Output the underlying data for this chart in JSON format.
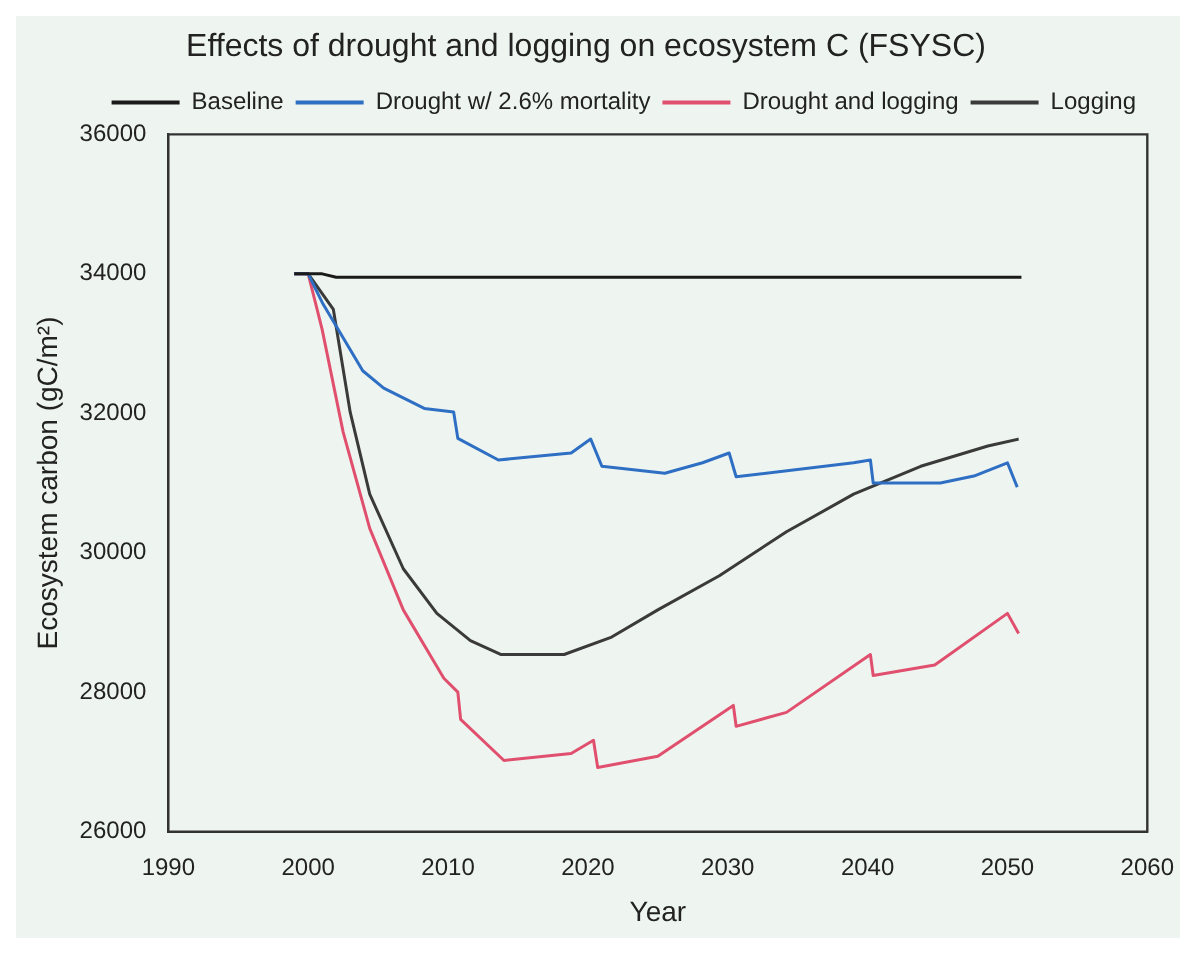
{
  "chart_data": {
    "type": "line",
    "title": "Effects of drought and logging on ecosystem C (FSYSC)",
    "xlabel": "Year",
    "ylabel": "Ecosystem carbon (gC/m²)",
    "xlim": [
      1990,
      2060
    ],
    "xticks": [
      1990,
      2000,
      2010,
      2020,
      2030,
      2040,
      2050,
      2060
    ],
    "ylim": [
      26000,
      36000
    ],
    "yticks": [
      26000,
      28000,
      30000,
      32000,
      34000,
      36000
    ],
    "grid": false,
    "legend": "top right",
    "line_style": "solid",
    "marker": "none",
    "series": [
      {
        "name": "Baseline",
        "color": "#1a1a1a",
        "x": [
          1999,
          2001,
          2002,
          2051
        ],
        "values": [
          34000,
          34000,
          33950,
          33950
        ]
      },
      {
        "name": "Drought w/ 2.6% mortality",
        "color": "#2e6fc4",
        "x": [
          1999,
          2000,
          2001,
          2003.9,
          2005.4,
          2008.3,
          2010.4,
          2010.7,
          2013.6,
          2018.8,
          2020.2,
          2021,
          2025.5,
          2028.2,
          2030.1,
          2030.6,
          2039,
          2040.2,
          2040.4,
          2045.2,
          2047.6,
          2050,
          2050.7
        ],
        "values": [
          34000,
          34000,
          33590,
          32610,
          32360,
          32070,
          32020,
          31640,
          31330,
          31430,
          31630,
          31240,
          31140,
          31290,
          31430,
          31090,
          31290,
          31330,
          31000,
          31000,
          31100,
          31290,
          30940
        ]
      },
      {
        "name": "Drought and logging",
        "color": "#e0506e",
        "x": [
          1999,
          2000,
          2001,
          2002.5,
          2004.4,
          2006.8,
          2009.7,
          2010.7,
          2010.9,
          2014,
          2018.8,
          2020.4,
          2020.7,
          2025,
          2030.4,
          2030.6,
          2034.2,
          2040.2,
          2040.4,
          2044.8,
          2050,
          2050.8
        ],
        "values": [
          34000,
          34000,
          33200,
          31730,
          30350,
          29180,
          28200,
          28000,
          27610,
          27020,
          27120,
          27310,
          26920,
          27080,
          27810,
          27510,
          27710,
          28540,
          28240,
          28390,
          29130,
          28840
        ]
      },
      {
        "name": "Logging",
        "color": "#3a3a3a",
        "x": [
          1999,
          2000,
          2001.8,
          2003,
          2004.4,
          2006.8,
          2009.2,
          2011.6,
          2013.8,
          2018.3,
          2021.7,
          2025,
          2029.4,
          2034.2,
          2039,
          2043.8,
          2048.6,
          2050.8
        ],
        "values": [
          34000,
          34000,
          33490,
          32020,
          30840,
          29770,
          29130,
          28740,
          28540,
          28540,
          28790,
          29180,
          29670,
          30300,
          30840,
          31240,
          31530,
          31630
        ]
      }
    ]
  }
}
